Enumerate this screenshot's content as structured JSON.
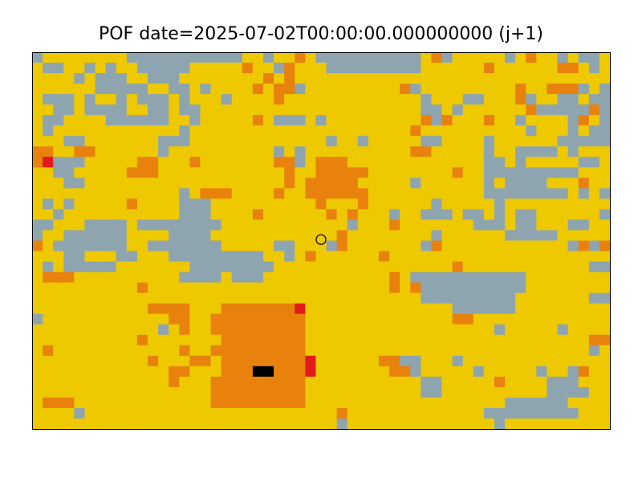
{
  "chart_data": {
    "type": "heatmap",
    "title": "POF date=2025-07-02T00:00:00.000000000 (j+1)",
    "xlabel": "",
    "ylabel": "",
    "grid": false,
    "legend": "none",
    "cols": 55,
    "rows": 36,
    "palette": {
      "0": "#8ea5b0",
      "1": "#eec900",
      "2": "#e8820c",
      "3": "#e31a1c",
      "4": "#000000"
    },
    "grid_rows": [
      "0111111110000000000011011210000000000120111110121101001",
      "1001101011000001111121102111000000000111111211111122101",
      "1111010001100011111111212111111111111111111111111111111",
      "1111110000011001011112122011111111120111111111211222010",
      "1000101101000101110111121111111111111011100111201100100",
      "1100100001100100111111111111111111111001011111120000020",
      "1001111000000110111112100010111111111202111211011110210",
      "1011111111111101111111111111111111112111111111101110100",
      "1110011111110001111111111111011011111001111011111100000",
      "2211221111110111111111101011111111112211111011000010111",
      "2300011111221112111111122012221111111111111001011111001",
      "1100111112221111111111112112222211111111211000000000111",
      "1110011111111111111111112122222111110111111010000111211",
      "1111111111111101222111121122222211111111111000000001010",
      "1010111112111100011111111112111211111101111101111111111",
      "1101111111111100011112111111212111011000100101001111110",
      "0011100001000000001111111111110111211111110001001110011",
      "0110000001111000011111111111121111111101111110000011111",
      "2100000001100000001111100111021111111021111111111110202",
      "1110011100111000000000110121111112111111111111111111111",
      "1010000011111110000000011111111111111111211111111111100",
      "1222111111111100001000111111111111210000000000011111111",
      "1111111111211111111111111111111111212000000000011111111",
      "1111111111111111111111111111111111111000000000111111100",
      "1111111111122221112222222311111111111111000000111111111",
      "0111111111111221122222222211111111111111221111111111111",
      "1111111111110121122222222211111111111111111101111101111",
      "1111111111211111112222222211111111111111111111111111122",
      "1211111111111121122222222211111111111111111111111111101",
      "1111111111121112212222222231111112200111011111111111111",
      "1111111111111221112224422231111111220111110111110110211",
      "1111111111111211122222222211111111111001111121111000111",
      "1111111111111111122222222211111111111001111111111000011",
      "1222111111111111122222222211111111111111111110000001111",
      "1111011111111111111111111111121111111111111000000000111",
      "1111111111111111111111111111101111111111111101111111111"
    ],
    "point": {
      "col": 27.5,
      "row": 17.9
    }
  }
}
